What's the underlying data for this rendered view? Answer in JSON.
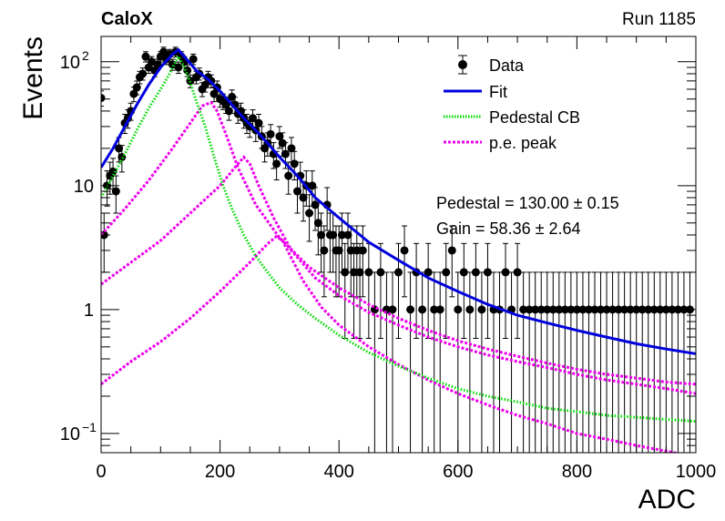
{
  "header": {
    "experiment": "CaloX",
    "run": "Run 1185"
  },
  "chart_data": {
    "type": "scatter",
    "xlabel": "ADC",
    "ylabel": "Events",
    "xlim": [
      0,
      1000
    ],
    "ylim": [
      0.07,
      160
    ],
    "yscale": "log",
    "grid": false,
    "legend_position": "top-right",
    "x_ticks": [
      "0",
      "200",
      "400",
      "600",
      "800",
      "1000"
    ],
    "y_ticks": [
      {
        "value": 100,
        "mantissa": "10",
        "exp": "2"
      },
      {
        "value": 10,
        "mantissa": "10",
        "exp": ""
      },
      {
        "value": 1,
        "mantissa": "1",
        "exp": ""
      },
      {
        "value": 0.1,
        "mantissa": "10",
        "exp": "−1"
      }
    ],
    "fit_params": {
      "pedestal_label": "Pedestal",
      "pedestal_value": "130.00",
      "pedestal_error": "0.15",
      "gain_label": "Gain",
      "gain_value": "58.36",
      "gain_error": "2.64",
      "pm": "±"
    },
    "legend": [
      {
        "label": "Data",
        "kind": "marker",
        "color": "#000000"
      },
      {
        "label": "Fit",
        "kind": "line",
        "color": "#0000dd"
      },
      {
        "label": "Pedestal CB",
        "kind": "dotted",
        "color": "#00dd00"
      },
      {
        "label": "p.e. peak",
        "kind": "dashed",
        "color": "#ee00ee"
      }
    ],
    "data_points": {
      "x": [
        0,
        5,
        10,
        15,
        20,
        25,
        30,
        35,
        40,
        45,
        50,
        55,
        60,
        65,
        70,
        75,
        80,
        85,
        90,
        95,
        100,
        105,
        110,
        115,
        120,
        125,
        130,
        135,
        140,
        145,
        150,
        155,
        160,
        165,
        170,
        175,
        180,
        185,
        190,
        195,
        200,
        205,
        210,
        215,
        220,
        225,
        230,
        235,
        240,
        245,
        250,
        255,
        260,
        265,
        270,
        275,
        280,
        285,
        290,
        295,
        300,
        305,
        310,
        315,
        320,
        325,
        330,
        335,
        340,
        345,
        350,
        355,
        360,
        365,
        370,
        375,
        380,
        385,
        390,
        395,
        400,
        405,
        410,
        415,
        420,
        425,
        430,
        435,
        440,
        450,
        460,
        470,
        480,
        490,
        500,
        510,
        520,
        530,
        540,
        550,
        560,
        570,
        580,
        590,
        600,
        610,
        620,
        630,
        640,
        650,
        660,
        670,
        680,
        690,
        700,
        710,
        720,
        730,
        740,
        750,
        760,
        770,
        780,
        790,
        800,
        810,
        820,
        830,
        840,
        850,
        860,
        870,
        880,
        890,
        900,
        910,
        920,
        930,
        940,
        950,
        960,
        970,
        980,
        990
      ],
      "y": [
        51,
        4,
        10,
        12,
        13,
        9,
        20,
        17,
        32,
        35,
        40,
        55,
        62,
        75,
        80,
        110,
        90,
        100,
        85,
        95,
        110,
        120,
        105,
        115,
        95,
        120,
        90,
        110,
        100,
        85,
        70,
        105,
        75,
        80,
        60,
        65,
        75,
        70,
        55,
        62,
        50,
        48,
        45,
        40,
        52,
        45,
        38,
        40,
        35,
        32,
        30,
        35,
        28,
        32,
        25,
        20,
        22,
        26,
        18,
        15,
        25,
        22,
        18,
        12,
        20,
        15,
        9,
        12,
        8,
        10,
        6,
        10,
        7,
        5,
        4,
        3,
        7,
        4,
        4,
        3,
        3,
        4,
        2,
        4,
        3,
        2,
        3,
        2,
        3,
        2,
        1,
        2,
        1,
        1,
        2,
        3,
        1,
        2,
        1,
        2,
        1,
        1,
        2,
        3,
        1,
        2,
        1,
        2,
        1,
        2,
        1,
        1,
        2,
        1,
        2,
        1,
        1,
        1,
        1,
        1,
        1,
        1,
        1,
        1,
        1,
        1,
        1,
        1,
        1,
        1,
        1,
        1,
        1,
        1,
        1,
        1,
        1,
        1,
        1,
        1,
        1,
        1,
        1,
        1
      ]
    },
    "fit_curve": {
      "x": [
        0,
        20,
        40,
        60,
        80,
        100,
        120,
        130,
        140,
        160,
        180,
        200,
        220,
        240,
        260,
        280,
        300,
        330,
        360,
        400,
        450,
        500,
        550,
        600,
        650,
        700,
        750,
        800,
        850,
        900,
        950,
        1000
      ],
      "y": [
        14,
        20,
        30,
        45,
        65,
        90,
        115,
        125,
        110,
        85,
        72,
        58,
        45,
        35,
        28,
        22,
        17,
        12,
        8,
        5.5,
        3.5,
        2.5,
        1.8,
        1.4,
        1.1,
        0.9,
        0.78,
        0.68,
        0.6,
        0.53,
        0.48,
        0.44
      ]
    },
    "pedestal_curve": {
      "x": [
        0,
        20,
        40,
        60,
        80,
        100,
        115,
        125,
        130,
        140,
        150,
        160,
        175,
        190,
        205,
        220,
        240,
        260,
        280,
        300,
        330,
        360,
        400,
        450,
        500,
        550,
        600,
        650,
        700,
        750,
        800,
        850,
        900,
        950,
        1000
      ],
      "y": [
        8,
        12,
        18,
        28,
        42,
        60,
        80,
        100,
        110,
        90,
        68,
        48,
        30,
        17,
        10,
        6.5,
        4,
        2.7,
        2,
        1.5,
        1.1,
        0.85,
        0.62,
        0.45,
        0.35,
        0.28,
        0.23,
        0.2,
        0.18,
        0.16,
        0.15,
        0.14,
        0.135,
        0.13,
        0.125
      ]
    },
    "pe_peaks": [
      {
        "x": [
          0,
          40,
          80,
          120,
          150,
          170,
          185,
          195,
          210,
          230,
          260,
          300,
          350,
          400,
          450,
          500,
          550,
          600,
          650,
          700,
          750,
          800,
          850,
          900,
          950,
          1000
        ],
        "y": [
          4,
          6.5,
          11,
          20,
          32,
          44,
          47,
          40,
          26,
          14,
          7,
          3.8,
          2.2,
          1.5,
          1.1,
          0.85,
          0.68,
          0.56,
          0.48,
          0.42,
          0.37,
          0.33,
          0.3,
          0.28,
          0.26,
          0.25
        ]
      },
      {
        "x": [
          0,
          50,
          100,
          150,
          200,
          225,
          240,
          250,
          265,
          290,
          320,
          360,
          400,
          450,
          500,
          550,
          600,
          650,
          700,
          750,
          800,
          850,
          900,
          950,
          1000
        ],
        "y": [
          1.6,
          2.4,
          3.6,
          6,
          10,
          14,
          17,
          15,
          10,
          5.5,
          3,
          1.8,
          1.3,
          0.95,
          0.75,
          0.6,
          0.5,
          0.43,
          0.38,
          0.34,
          0.3,
          0.27,
          0.25,
          0.23,
          0.21
        ]
      },
      {
        "x": [
          0,
          50,
          100,
          150,
          200,
          250,
          280,
          295,
          305,
          320,
          340,
          370,
          400,
          450,
          500,
          550,
          600,
          650,
          700,
          750,
          800,
          850,
          900,
          950,
          1000
        ],
        "y": [
          0.25,
          0.38,
          0.55,
          0.85,
          1.4,
          2.4,
          3.4,
          3.9,
          3.6,
          2.6,
          1.7,
          1.05,
          0.75,
          0.5,
          0.36,
          0.27,
          0.21,
          0.17,
          0.14,
          0.12,
          0.1,
          0.09,
          0.08,
          0.072,
          0.065
        ]
      }
    ]
  }
}
